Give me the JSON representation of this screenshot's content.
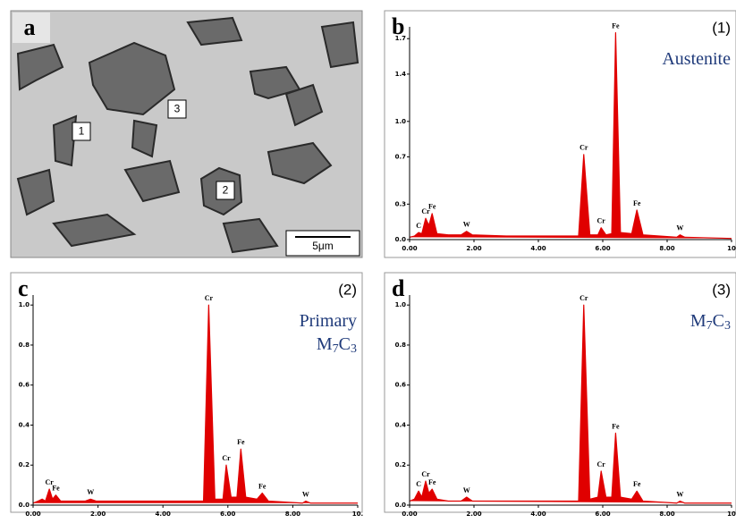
{
  "micrograph": {
    "panel": "a",
    "regions": [
      "1",
      "2",
      "3"
    ],
    "scale_bar": "5μm"
  },
  "chart_data": [
    {
      "type": "spectrum",
      "panel": "b",
      "spot": "(1)",
      "phase": [
        "Austenite"
      ],
      "color": "#e00000",
      "x": [
        0,
        0.15,
        0.28,
        0.38,
        0.5,
        0.6,
        0.7,
        0.85,
        1.2,
        1.6,
        1.77,
        1.95,
        3.0,
        4.5,
        5.25,
        5.41,
        5.6,
        5.85,
        5.95,
        6.1,
        6.28,
        6.4,
        6.55,
        6.9,
        7.06,
        7.25,
        8.3,
        8.4,
        8.55,
        10
      ],
      "values": [
        0.02,
        0.03,
        0.06,
        0.05,
        0.18,
        0.12,
        0.22,
        0.05,
        0.04,
        0.04,
        0.07,
        0.04,
        0.03,
        0.03,
        0.03,
        0.72,
        0.04,
        0.04,
        0.1,
        0.04,
        0.05,
        1.75,
        0.06,
        0.05,
        0.25,
        0.04,
        0.02,
        0.04,
        0.02,
        0.01
      ],
      "xlim": [
        0,
        10
      ],
      "xticks": [
        {
          "value": 0,
          "label": "0.00"
        },
        {
          "value": 2,
          "label": "2.00"
        },
        {
          "value": 4,
          "label": "4.00"
        },
        {
          "value": 6,
          "label": "6.00"
        },
        {
          "value": 8,
          "label": "8.00"
        },
        {
          "value": 10,
          "label": "10"
        }
      ],
      "ylim": [
        0,
        1.8
      ],
      "yticks": [
        {
          "value": 0,
          "label": "0.0"
        },
        0.3,
        0.7,
        {
          "value": 1,
          "label": "1.0"
        },
        1.4,
        1.7
      ],
      "peak_labels": [
        {
          "text": "C",
          "x": 0.28
        },
        {
          "text": "Cr",
          "x": 0.5
        },
        {
          "text": "Fe",
          "x": 0.7
        },
        {
          "text": "W",
          "x": 1.77
        },
        {
          "text": "Cr",
          "x": 5.41
        },
        {
          "text": "Cr",
          "x": 5.95
        },
        {
          "text": "Fe",
          "x": 6.4
        },
        {
          "text": "Fe",
          "x": 7.06
        },
        {
          "text": "W",
          "x": 8.4
        }
      ]
    },
    {
      "type": "spectrum",
      "panel": "c",
      "spot": "(2)",
      "phase": [
        "Primary",
        "M7C3"
      ],
      "color": "#e00000",
      "x": [
        0,
        0.15,
        0.28,
        0.38,
        0.5,
        0.6,
        0.7,
        0.85,
        1.2,
        1.6,
        1.77,
        1.95,
        3.0,
        4.5,
        5.25,
        5.41,
        5.6,
        5.85,
        5.95,
        6.1,
        6.28,
        6.4,
        6.55,
        6.9,
        7.06,
        7.25,
        8.3,
        8.4,
        8.55,
        10
      ],
      "values": [
        0.01,
        0.02,
        0.03,
        0.02,
        0.08,
        0.03,
        0.05,
        0.02,
        0.02,
        0.02,
        0.03,
        0.02,
        0.02,
        0.02,
        0.02,
        1.0,
        0.03,
        0.03,
        0.2,
        0.04,
        0.04,
        0.28,
        0.04,
        0.03,
        0.06,
        0.02,
        0.01,
        0.02,
        0.01,
        0.01
      ],
      "xlim": [
        0,
        10
      ],
      "xticks": [
        {
          "value": 0,
          "label": "0.00"
        },
        {
          "value": 2,
          "label": "2.00"
        },
        {
          "value": 4,
          "label": "4.00"
        },
        {
          "value": 6,
          "label": "6.00"
        },
        {
          "value": 8,
          "label": "8.00"
        },
        {
          "value": 10,
          "label": "10."
        }
      ],
      "ylim": [
        0,
        1.05
      ],
      "yticks": [
        {
          "value": 0,
          "label": "0.0"
        },
        0.2,
        0.4,
        0.6,
        0.8,
        {
          "value": 1,
          "label": "1.0"
        }
      ],
      "peak_labels": [
        {
          "text": "Cr",
          "x": 0.5
        },
        {
          "text": "Fe",
          "x": 0.7
        },
        {
          "text": "W",
          "x": 1.77
        },
        {
          "text": "Cr",
          "x": 5.41
        },
        {
          "text": "Cr",
          "x": 5.95
        },
        {
          "text": "Fe",
          "x": 6.4
        },
        {
          "text": "Fe",
          "x": 7.06
        },
        {
          "text": "W",
          "x": 8.4
        }
      ]
    },
    {
      "type": "spectrum",
      "panel": "d",
      "spot": "(3)",
      "phase": [
        "M7C3"
      ],
      "color": "#e00000",
      "x": [
        0,
        0.15,
        0.28,
        0.38,
        0.5,
        0.6,
        0.7,
        0.85,
        1.2,
        1.6,
        1.77,
        1.95,
        3.0,
        4.5,
        5.25,
        5.41,
        5.6,
        5.85,
        5.95,
        6.1,
        6.28,
        6.4,
        6.55,
        6.9,
        7.06,
        7.25,
        8.3,
        8.4,
        8.55,
        10
      ],
      "values": [
        0.02,
        0.03,
        0.07,
        0.04,
        0.12,
        0.06,
        0.08,
        0.03,
        0.02,
        0.02,
        0.04,
        0.02,
        0.02,
        0.02,
        0.02,
        1.0,
        0.03,
        0.04,
        0.17,
        0.04,
        0.04,
        0.36,
        0.04,
        0.03,
        0.07,
        0.02,
        0.01,
        0.02,
        0.01,
        0.01
      ],
      "xlim": [
        0,
        10
      ],
      "xticks": [
        {
          "value": 0,
          "label": "0.00"
        },
        {
          "value": 2,
          "label": "2.00"
        },
        {
          "value": 4,
          "label": "4.00"
        },
        {
          "value": 6,
          "label": "6.00"
        },
        {
          "value": 8,
          "label": "8.00"
        },
        {
          "value": 10,
          "label": "10"
        }
      ],
      "ylim": [
        0,
        1.05
      ],
      "yticks": [
        {
          "value": 0,
          "label": "0.0"
        },
        0.2,
        0.4,
        0.6,
        0.8,
        {
          "value": 1,
          "label": "1.0"
        }
      ],
      "peak_labels": [
        {
          "text": "C",
          "x": 0.28
        },
        {
          "text": "Cr",
          "x": 0.5
        },
        {
          "text": "Fe",
          "x": 0.7
        },
        {
          "text": "W",
          "x": 1.77
        },
        {
          "text": "Cr",
          "x": 5.41
        },
        {
          "text": "Cr",
          "x": 5.95
        },
        {
          "text": "Fe",
          "x": 6.4
        },
        {
          "text": "Fe",
          "x": 7.06
        },
        {
          "text": "W",
          "x": 8.4
        }
      ]
    }
  ]
}
